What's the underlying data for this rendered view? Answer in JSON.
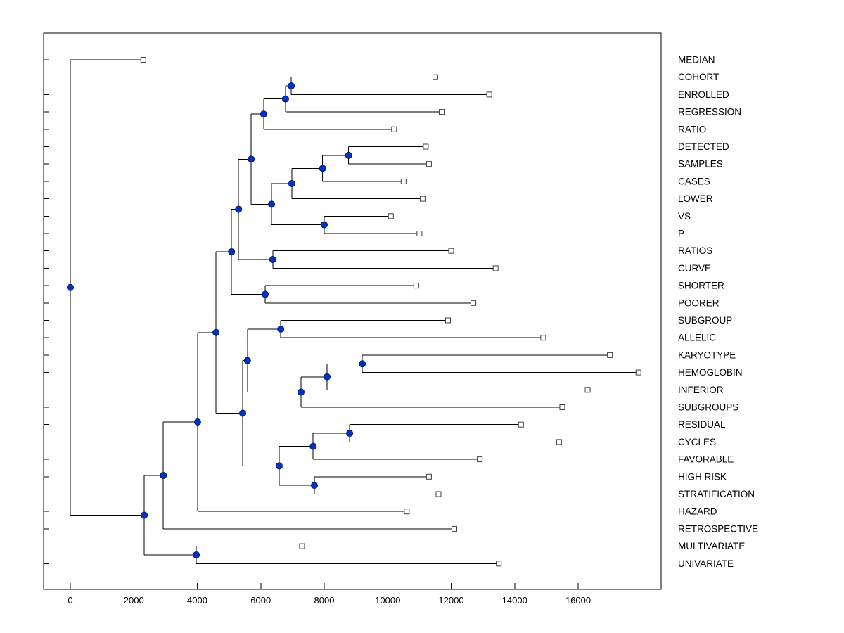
{
  "figure": {
    "background": "#ffffff",
    "title": ""
  },
  "chart_data": {
    "type": "dendrogram",
    "title": "",
    "subtitle": "",
    "xlabel": "",
    "ylabel": "",
    "grid": false,
    "legend": "none",
    "orientation": "left-rooted-horizontal",
    "xlim": [
      0,
      18600
    ],
    "x_ticks": [
      0,
      2000,
      4000,
      6000,
      8000,
      10000,
      12000,
      14000,
      16000
    ],
    "colors": {
      "branch": "#000000",
      "node_fill": "#0033cc",
      "node_edge": "#001966",
      "leaf_fill": "#ffffff",
      "leaf_edge": "#404040",
      "text": "#000000",
      "background": "#ffffff"
    },
    "leaves": [
      {
        "label": "MEDIAN",
        "tip": 2300
      },
      {
        "label": "COHORT",
        "tip": 11500
      },
      {
        "label": "ENROLLED",
        "tip": 13200
      },
      {
        "label": "REGRESSION",
        "tip": 11700
      },
      {
        "label": "RATIO",
        "tip": 10200
      },
      {
        "label": "DETECTED",
        "tip": 11200
      },
      {
        "label": "SAMPLES",
        "tip": 11300
      },
      {
        "label": "CASES",
        "tip": 10500
      },
      {
        "label": "LOWER",
        "tip": 11100
      },
      {
        "label": "VS",
        "tip": 10100
      },
      {
        "label": "P",
        "tip": 11000
      },
      {
        "label": "RATIOS",
        "tip": 12000
      },
      {
        "label": "CURVE",
        "tip": 13400
      },
      {
        "label": "SHORTER",
        "tip": 10900
      },
      {
        "label": "POORER",
        "tip": 12700
      },
      {
        "label": "SUBGROUP",
        "tip": 11900
      },
      {
        "label": "ALLELIC",
        "tip": 14900
      },
      {
        "label": "KARYOTYPE",
        "tip": 17000
      },
      {
        "label": "HEMOGLOBIN",
        "tip": 17900
      },
      {
        "label": "INFERIOR",
        "tip": 16300
      },
      {
        "label": "SUBGROUPS",
        "tip": 15500
      },
      {
        "label": "RESIDUAL",
        "tip": 14200
      },
      {
        "label": "CYCLES",
        "tip": 15400
      },
      {
        "label": "FAVORABLE",
        "tip": 12900
      },
      {
        "label": "HIGH RISK",
        "tip": 11300
      },
      {
        "label": "STRATIFICATION",
        "tip": 11600
      },
      {
        "label": "HAZARD",
        "tip": 10600
      },
      {
        "label": "RETROSPECTIVE",
        "tip": 12100
      },
      {
        "label": "MULTIVARIATE",
        "tip": 7300
      },
      {
        "label": "UNIVARIATE",
        "tip": 13500
      }
    ],
    "tree": {
      "x": 0,
      "children": [
        {
          "leaf": "MEDIAN"
        },
        {
          "x": 2330,
          "children": [
            {
              "x": 2930,
              "children": [
                {
                  "x": 4010,
                  "children": [
                    {
                      "x": 4590,
                      "children": [
                        {
                          "x": 5080,
                          "children": [
                            {
                              "x": 5300,
                              "children": [
                                {
                                  "x": 5700,
                                  "children": [
                                    {
                                      "x": 6090,
                                      "children": [
                                        {
                                          "x": 6780,
                                          "children": [
                                            {
                                              "x": 6960,
                                              "children": [
                                                {
                                                  "leaf": "COHORT"
                                                },
                                                {
                                                  "leaf": "ENROLLED"
                                                }
                                              ]
                                            },
                                            {
                                              "leaf": "REGRESSION"
                                            }
                                          ]
                                        },
                                        {
                                          "leaf": "RATIO"
                                        }
                                      ]
                                    },
                                    {
                                      "x": 6340,
                                      "children": [
                                        {
                                          "x": 6980,
                                          "children": [
                                            {
                                              "x": 7950,
                                              "children": [
                                                {
                                                  "x": 8770,
                                                  "children": [
                                                    {
                                                      "leaf": "DETECTED"
                                                    },
                                                    {
                                                      "leaf": "SAMPLES"
                                                    }
                                                  ]
                                                },
                                                {
                                                  "leaf": "CASES"
                                                }
                                              ]
                                            },
                                            {
                                              "leaf": "LOWER"
                                            }
                                          ]
                                        },
                                        {
                                          "x": 8000,
                                          "children": [
                                            {
                                              "leaf": "VS"
                                            },
                                            {
                                              "leaf": "P"
                                            }
                                          ]
                                        }
                                      ]
                                    }
                                  ]
                                },
                                {
                                  "x": 6380,
                                  "children": [
                                    {
                                      "leaf": "RATIOS"
                                    },
                                    {
                                      "leaf": "CURVE"
                                    }
                                  ]
                                }
                              ]
                            },
                            {
                              "x": 6140,
                              "children": [
                                {
                                  "leaf": "SHORTER"
                                },
                                {
                                  "leaf": "POORER"
                                }
                              ]
                            }
                          ]
                        },
                        {
                          "x": 5430,
                          "children": [
                            {
                              "x": 5580,
                              "children": [
                                {
                                  "x": 6630,
                                  "children": [
                                    {
                                      "leaf": "SUBGROUP"
                                    },
                                    {
                                      "leaf": "ALLELIC"
                                    }
                                  ]
                                },
                                {
                                  "x": 7270,
                                  "children": [
                                    {
                                      "x": 8090,
                                      "children": [
                                        {
                                          "x": 9200,
                                          "children": [
                                            {
                                              "leaf": "KARYOTYPE"
                                            },
                                            {
                                              "leaf": "HEMOGLOBIN"
                                            }
                                          ]
                                        },
                                        {
                                          "leaf": "INFERIOR"
                                        }
                                      ]
                                    },
                                    {
                                      "leaf": "SUBGROUPS"
                                    }
                                  ]
                                }
                              ]
                            },
                            {
                              "x": 6580,
                              "children": [
                                {
                                  "x": 7650,
                                  "children": [
                                    {
                                      "x": 8800,
                                      "children": [
                                        {
                                          "leaf": "RESIDUAL"
                                        },
                                        {
                                          "leaf": "CYCLES"
                                        }
                                      ]
                                    },
                                    {
                                      "leaf": "FAVORABLE"
                                    }
                                  ]
                                },
                                {
                                  "x": 7690,
                                  "children": [
                                    {
                                      "leaf": "HIGH RISK"
                                    },
                                    {
                                      "leaf": "STRATIFICATION"
                                    }
                                  ]
                                }
                              ]
                            }
                          ]
                        }
                      ]
                    },
                    {
                      "leaf": "HAZARD"
                    }
                  ]
                },
                {
                  "leaf": "RETROSPECTIVE"
                }
              ]
            },
            {
              "x": 3970,
              "children": [
                {
                  "leaf": "MULTIVARIATE"
                },
                {
                  "leaf": "UNIVARIATE"
                }
              ]
            }
          ]
        }
      ]
    }
  }
}
